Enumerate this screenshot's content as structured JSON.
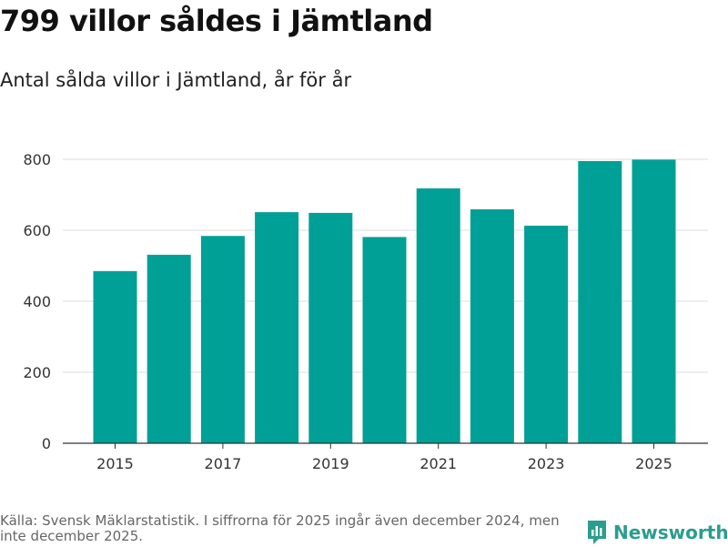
{
  "header": {
    "title": "799 villor såldes i Jämtland",
    "subtitle": "Antal sålda villor i Jämtland, år för år"
  },
  "chart_data": {
    "type": "bar",
    "categories": [
      "2015",
      "2016",
      "2017",
      "2018",
      "2019",
      "2020",
      "2021",
      "2022",
      "2023",
      "2024",
      "2025"
    ],
    "values": [
      485,
      531,
      584,
      651,
      649,
      581,
      718,
      659,
      613,
      795,
      799
    ],
    "x_tick_labels": [
      "2015",
      "2017",
      "2019",
      "2021",
      "2023",
      "2025"
    ],
    "y_ticks": [
      0,
      200,
      400,
      600,
      800
    ],
    "ylim": [
      0,
      800
    ],
    "bar_color": "#00a096",
    "grid": true,
    "title": "799 villor såldes i Jämtland",
    "xlabel": "",
    "ylabel": ""
  },
  "footer": {
    "source": "Källa: Svensk Mäklarstatistik. I siffrorna för 2025 ingår även december 2024, men inte december 2025.",
    "logo_text": "Newsworthy",
    "logo_color": "#2a9d8f"
  }
}
